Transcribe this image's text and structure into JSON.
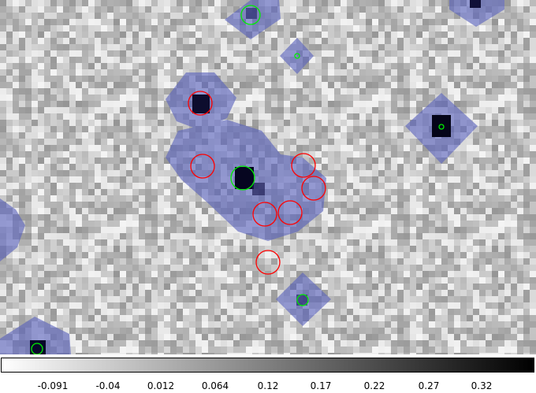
{
  "image": {
    "description_kind": "astronomical map with source regions",
    "colors": {
      "noise_low": "#f2f2f2",
      "noise_high": "#808080",
      "overlay": "#4a54b0",
      "core": "#0b0b2a",
      "circle_red": "#ff0000",
      "circle_green": "#00ee00"
    }
  },
  "colorbar": {
    "colormap": "grey (white to black)",
    "gradient_start": "#ffffff",
    "gradient_end": "#000000",
    "ticks": [
      "-0.091",
      "-0.04",
      "0.012",
      "0.064",
      "0.12",
      "0.17",
      "0.22",
      "0.27",
      "0.32"
    ]
  }
}
